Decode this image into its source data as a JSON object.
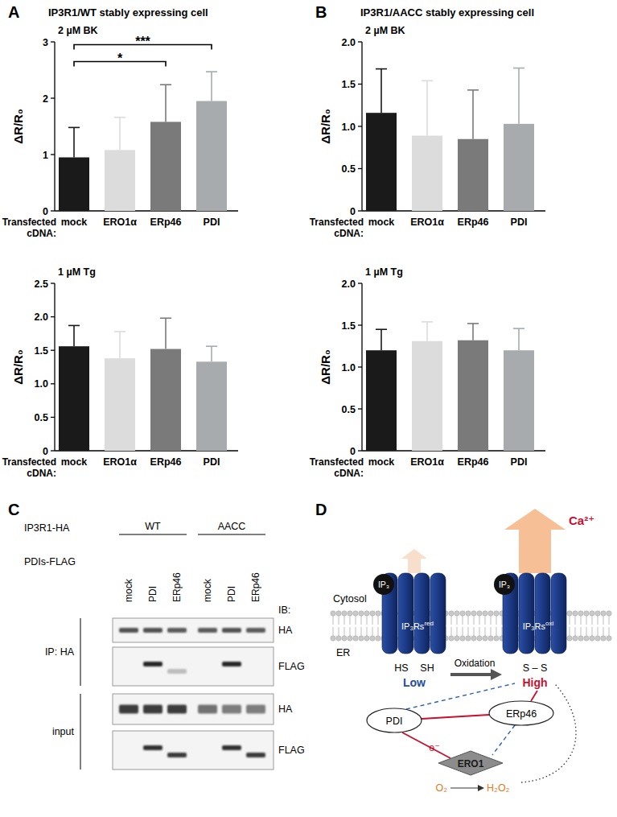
{
  "panels": [
    {
      "label": "A",
      "title": "IP3R1/WT stably expressing cell"
    },
    {
      "label": "B",
      "title": "IP3R1/AACC stably expressing cell"
    }
  ],
  "chart_data": [
    {
      "type": "bar",
      "title": "2 µM BK",
      "y_label": "ΔR/R₀",
      "x_label": "Transfected cDNA:",
      "categories": [
        "mock",
        "ERO1α",
        "ERp46",
        "PDI"
      ],
      "values": [
        0.95,
        1.08,
        1.58,
        1.95
      ],
      "errors": [
        0.53,
        0.58,
        0.66,
        0.52
      ],
      "colors": [
        "#1a1a1a",
        "#dcdcdc",
        "#7a7a7a",
        "#a7abae"
      ],
      "ylim": [
        0,
        3
      ],
      "yticks": [
        0,
        1,
        2,
        3
      ],
      "annotations": [
        {
          "text": "*",
          "from": 0,
          "to": 2,
          "y": 2.65
        },
        {
          "text": "***",
          "from": 0,
          "to": 3,
          "y": 2.95
        }
      ]
    },
    {
      "type": "bar",
      "title": "1 µM Tg",
      "y_label": "ΔR/R₀",
      "x_label": "Transfected cDNA:",
      "categories": [
        "mock",
        "ERO1α",
        "ERp46",
        "PDI"
      ],
      "values": [
        1.56,
        1.38,
        1.52,
        1.33
      ],
      "errors": [
        0.31,
        0.4,
        0.46,
        0.23
      ],
      "colors": [
        "#1a1a1a",
        "#dcdcdc",
        "#7a7a7a",
        "#a7abae"
      ],
      "ylim": [
        0,
        2.5
      ],
      "yticks": [
        0,
        0.5,
        {
          "value": 1,
          "label": "1.0"
        },
        1.5,
        {
          "value": 2,
          "label": "2.0"
        },
        2.5
      ]
    },
    {
      "type": "bar",
      "title": "2 µM BK",
      "y_label": "ΔR/R₀",
      "x_label": "Transfected cDNA:",
      "categories": [
        "mock",
        "ERO1α",
        "ERp46",
        "PDI"
      ],
      "values": [
        1.16,
        0.89,
        0.85,
        1.03
      ],
      "errors": [
        0.52,
        0.65,
        0.58,
        0.66
      ],
      "colors": [
        "#1a1a1a",
        "#dcdcdc",
        "#7a7a7a",
        "#a7abae"
      ],
      "ylim": [
        0,
        2
      ],
      "yticks": [
        0,
        0.5,
        {
          "value": 1,
          "label": "1.0"
        },
        1.5,
        {
          "value": 2,
          "label": "2.0"
        }
      ]
    },
    {
      "type": "bar",
      "title": "1 µM Tg",
      "y_label": "ΔR/R₀",
      "x_label": "Transfected cDNA:",
      "categories": [
        "mock",
        "ERO1α",
        "ERp46",
        "PDI"
      ],
      "values": [
        1.2,
        1.31,
        1.32,
        1.2
      ],
      "errors": [
        0.25,
        0.23,
        0.2,
        0.26
      ],
      "colors": [
        "#1a1a1a",
        "#dcdcdc",
        "#7a7a7a",
        "#a7abae"
      ],
      "ylim": [
        0,
        2
      ],
      "yticks": [
        0,
        0.5,
        {
          "value": 1,
          "label": "1.0"
        },
        1.5,
        {
          "value": 2,
          "label": "2.0"
        }
      ]
    }
  ],
  "blot": {
    "label": "C",
    "construct_label": "IP3R1-HA",
    "lane_label": "PDIs-FLAG",
    "ib_label": "IB:",
    "groups": [
      {
        "name": "WT",
        "lanes": [
          "mock",
          "PDI",
          "ERp46"
        ]
      },
      {
        "name": "AACC",
        "lanes": [
          "mock",
          "PDI",
          "ERp46"
        ]
      }
    ],
    "sections": [
      {
        "name": "IP: HA",
        "rows": [
          {
            "antibody": "HA",
            "intensity": [
              0.75,
              0.75,
              0.7,
              0.7,
              0.75,
              0.7
            ]
          },
          {
            "antibody": "FLAG",
            "intensity": [
              0,
              0.95,
              0.25,
              0,
              0.95,
              0
            ]
          }
        ]
      },
      {
        "name": "input",
        "rows": [
          {
            "antibody": "HA",
            "intensity": [
              0.85,
              0.85,
              0.85,
              0.6,
              0.55,
              0.55
            ]
          },
          {
            "antibody": "FLAG",
            "intensity": [
              0,
              0.9,
              0.85,
              0,
              0.9,
              0.85
            ]
          }
        ]
      }
    ]
  },
  "diagram": {
    "label": "D",
    "compartments": {
      "cytosol": "Cytosol",
      "er": "ER"
    },
    "channels": [
      {
        "name": {
          "base": "IP₃Rs",
          "sup": "red"
        },
        "ligand": "IP₃",
        "thiols": [
          "HS",
          "SH"
        ],
        "activity": "Low",
        "activity_color": "#1f4e9c"
      },
      {
        "name": {
          "base": "IP₃Rs",
          "sup": "oxi"
        },
        "ligand": "IP₃",
        "thiols": [
          "S – S"
        ],
        "activity": "High",
        "activity_color": "#c8102e"
      }
    ],
    "ion": "Ca²⁺",
    "transition": "Oxidation",
    "nodes": [
      {
        "label": "PDI"
      },
      {
        "label": "ERp46"
      },
      {
        "label": "ERO1"
      }
    ],
    "electron": "e⁻",
    "substrate": "O₂",
    "product": "H₂O₂"
  }
}
